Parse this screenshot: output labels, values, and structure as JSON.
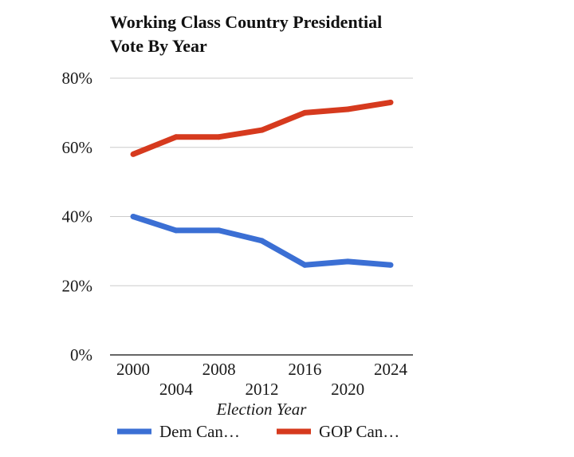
{
  "chart_data": {
    "type": "line",
    "title_lines": [
      "Working Class Country Presidential",
      "Vote By Year"
    ],
    "xlabel": "Election Year",
    "ylabel": "",
    "x": [
      2000,
      2004,
      2008,
      2012,
      2016,
      2020,
      2024
    ],
    "x_tick_labels": [
      "2000",
      "2004",
      "2008",
      "2012",
      "2016",
      "2020",
      "2024"
    ],
    "y_tick_values": [
      0,
      20,
      40,
      60,
      80
    ],
    "y_tick_labels": [
      "0%",
      "20%",
      "40%",
      "60%",
      "80%"
    ],
    "ylim": [
      0,
      80
    ],
    "grid": true,
    "legend_position": "bottom",
    "series": [
      {
        "name": "Dem Can…",
        "color": "#3b6fd4",
        "values": [
          40,
          36,
          36,
          33,
          26,
          27,
          26
        ]
      },
      {
        "name": "GOP Can…",
        "color": "#d63a1e",
        "values": [
          58,
          63,
          63,
          65,
          70,
          71,
          73
        ]
      }
    ]
  }
}
